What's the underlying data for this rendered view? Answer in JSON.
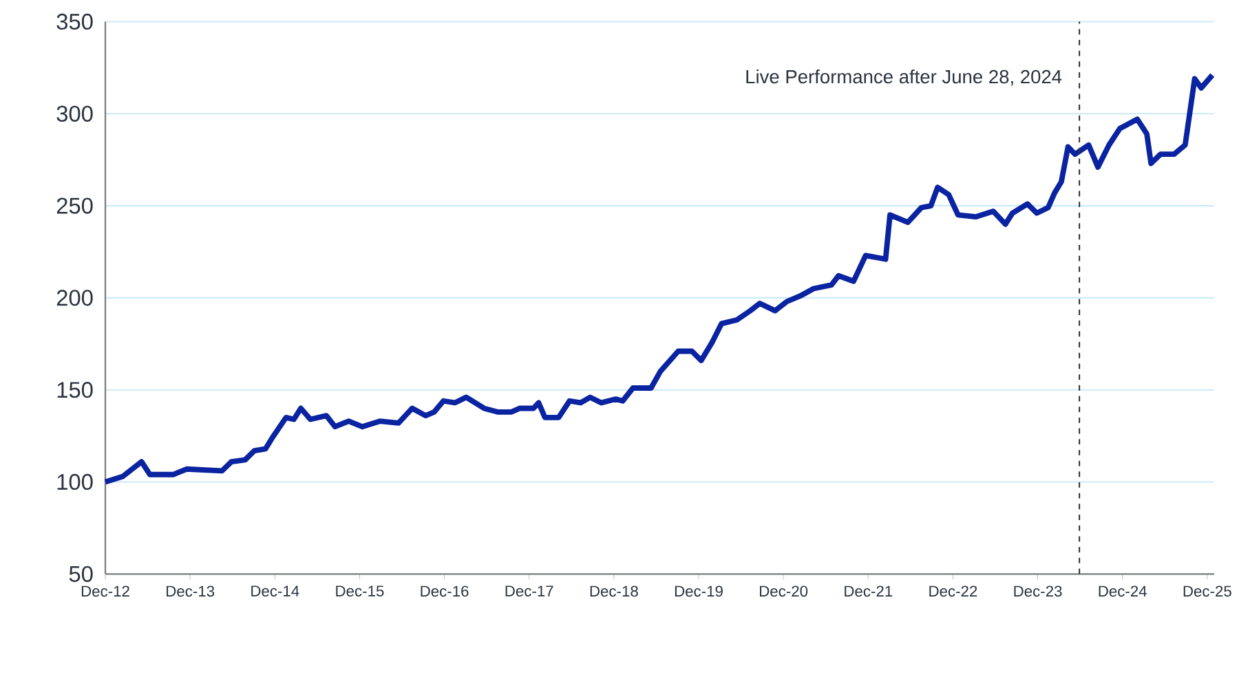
{
  "chart_data": {
    "type": "line",
    "xlim": [
      "2012-12-31",
      "2026-01-30"
    ],
    "ylim": [
      50,
      350
    ],
    "xticks": [
      {
        "value": "2012-12-31",
        "label": "Dec-12"
      },
      {
        "value": "2013-12-31",
        "label": "Dec-13"
      },
      {
        "value": "2014-12-31",
        "label": "Dec-14"
      },
      {
        "value": "2015-12-31",
        "label": "Dec-15"
      },
      {
        "value": "2016-12-31",
        "label": "Dec-16"
      },
      {
        "value": "2017-12-31",
        "label": "Dec-17"
      },
      {
        "value": "2018-12-31",
        "label": "Dec-18"
      },
      {
        "value": "2019-12-31",
        "label": "Dec-19"
      },
      {
        "value": "2020-12-31",
        "label": "Dec-20"
      },
      {
        "value": "2021-12-31",
        "label": "Dec-21"
      },
      {
        "value": "2022-12-31",
        "label": "Dec-22"
      },
      {
        "value": "2023-12-31",
        "label": "Dec-23"
      },
      {
        "value": "2024-12-31",
        "label": "Dec-24"
      },
      {
        "value": "2025-12-31",
        "label": "Dec-25"
      }
    ],
    "yticks": [
      50,
      100,
      150,
      200,
      250,
      300,
      350
    ],
    "grid": "y",
    "legend": false,
    "ref_lines": [
      {
        "axis": "x",
        "value": "2024-06-28",
        "label": "Live Performance after June 28, 2024",
        "color": "#333333",
        "line_style": "dashed"
      }
    ],
    "series": [
      {
        "color": "#0a23a0",
        "x": [
          "2012-12-31",
          "2013-03-16",
          "2013-06-05",
          "2013-07-11",
          "2013-10-19",
          "2013-12-16",
          "2014-05-17",
          "2014-06-27",
          "2014-08-25",
          "2014-10-04",
          "2014-11-21",
          "2014-12-20",
          "2015-02-17",
          "2015-03-23",
          "2015-04-22",
          "2015-06-02",
          "2015-08-10",
          "2015-09-16",
          "2015-11-14",
          "2016-01-11",
          "2016-03-27",
          "2016-06-16",
          "2016-08-14",
          "2016-10-11",
          "2016-11-17",
          "2016-12-27",
          "2017-02-14",
          "2017-04-04",
          "2017-06-20",
          "2017-08-17",
          "2017-10-15",
          "2017-11-21",
          "2018-01-19",
          "2018-02-10",
          "2018-03-09",
          "2018-05-07",
          "2018-06-23",
          "2018-08-10",
          "2018-09-20",
          "2018-11-07",
          "2019-01-08",
          "2019-02-07",
          "2019-03-23",
          "2019-06-09",
          "2019-07-19",
          "2019-10-04",
          "2019-12-02",
          "2020-01-11",
          "2020-02-28",
          "2020-04-08",
          "2020-06-13",
          "2020-08-10",
          "2020-09-20",
          "2020-11-25",
          "2021-01-15",
          "2021-03-13",
          "2021-05-10",
          "2021-07-26",
          "2021-08-25",
          "2021-10-29",
          "2021-12-20",
          "2022-03-16",
          "2022-04-04",
          "2022-06-20",
          "2022-08-17",
          "2022-09-27",
          "2022-10-26",
          "2022-12-13",
          "2023-01-22",
          "2023-04-08",
          "2023-06-23",
          "2023-08-14",
          "2023-09-13",
          "2023-11-17",
          "2023-12-27",
          "2024-02-14",
          "2024-03-13",
          "2024-04-11",
          "2024-05-10",
          "2024-06-09",
          "2024-08-07",
          "2024-09-16",
          "2024-11-03",
          "2024-12-20",
          "2025-03-05",
          "2025-04-15",
          "2025-05-03",
          "2025-06-13",
          "2025-08-10",
          "2025-09-27",
          "2025-11-07",
          "2025-12-05",
          "2026-01-22"
        ],
        "values": [
          100,
          103,
          111,
          104,
          104,
          107,
          106,
          111,
          112,
          117,
          118,
          124,
          135,
          134,
          140,
          134,
          136,
          130,
          133,
          130,
          133,
          132,
          140,
          136,
          138,
          144,
          143,
          146,
          140,
          138,
          138,
          140,
          140,
          143,
          135,
          135,
          144,
          143,
          146,
          143,
          145,
          144,
          151,
          151,
          160,
          171,
          171,
          166,
          176,
          186,
          188,
          193,
          197,
          193,
          198,
          201,
          205,
          207,
          212,
          209,
          223,
          221,
          245,
          241,
          249,
          250,
          260,
          256,
          245,
          244,
          247,
          240,
          246,
          251,
          246,
          249,
          257,
          263,
          282,
          278,
          283,
          271,
          283,
          292,
          297,
          289,
          273,
          278,
          278,
          283,
          319,
          314,
          321
        ]
      }
    ]
  }
}
